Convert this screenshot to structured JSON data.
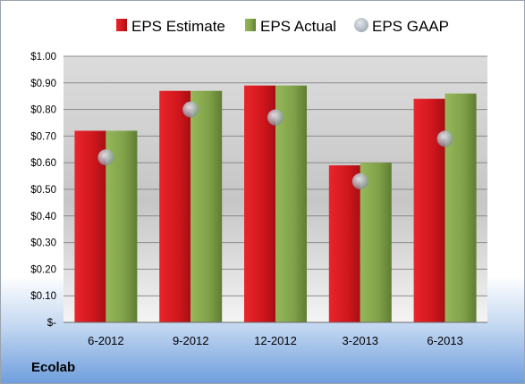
{
  "company": "Ecolab",
  "colors": {
    "estimate": "#d0161c",
    "actual": "#7fa048",
    "gaap": "#b9c2ce"
  },
  "chart_data": {
    "type": "bar",
    "categories": [
      "6-2012",
      "9-2012",
      "12-2012",
      "3-2013",
      "6-2013"
    ],
    "series": [
      {
        "name": "EPS Estimate",
        "kind": "bar",
        "values": [
          0.72,
          0.87,
          0.89,
          0.59,
          0.84
        ]
      },
      {
        "name": "EPS Actual",
        "kind": "bar",
        "values": [
          0.72,
          0.87,
          0.89,
          0.6,
          0.86
        ]
      },
      {
        "name": "EPS GAAP",
        "kind": "marker",
        "values": [
          0.62,
          0.8,
          0.77,
          0.53,
          0.69
        ]
      }
    ],
    "ylim": [
      0,
      1.0
    ],
    "yticks": [
      0,
      0.1,
      0.2,
      0.3,
      0.4,
      0.5,
      0.6,
      0.7,
      0.8,
      0.9,
      1.0
    ],
    "ytick_labels": [
      "$-",
      "$0.10",
      "$0.20",
      "$0.30",
      "$0.40",
      "$0.50",
      "$0.60",
      "$0.70",
      "$0.80",
      "$0.90",
      "$1.00"
    ],
    "grid": true,
    "legend_position": "top"
  }
}
